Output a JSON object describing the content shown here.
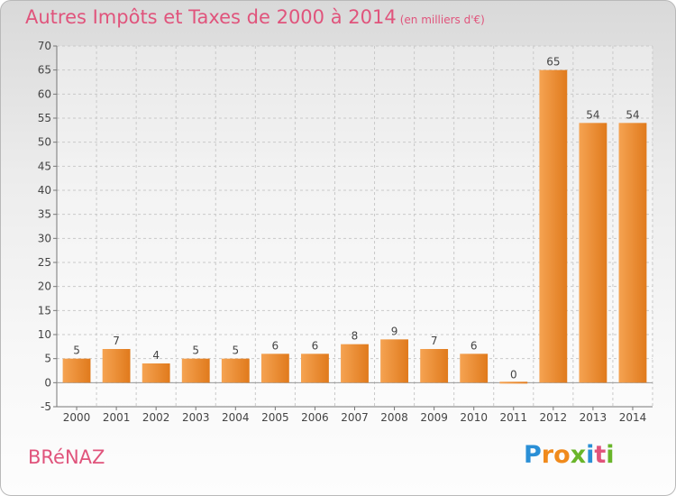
{
  "chart_data": {
    "type": "bar",
    "title": "Autres Impôts et Taxes de 2000 à 2014",
    "subtitle": "(en milliers d'€)",
    "categories": [
      "2000",
      "2001",
      "2002",
      "2003",
      "2004",
      "2005",
      "2006",
      "2007",
      "2008",
      "2009",
      "2010",
      "2011",
      "2012",
      "2013",
      "2014"
    ],
    "values": [
      5,
      7,
      4,
      5,
      5,
      6,
      6,
      8,
      9,
      7,
      6,
      0,
      65,
      54,
      54
    ],
    "ylim": [
      -5,
      70
    ],
    "yticks": [
      -5,
      0,
      5,
      10,
      15,
      20,
      25,
      30,
      35,
      40,
      45,
      50,
      55,
      60,
      65,
      70
    ],
    "grid": true,
    "bar_color": "#f0923a"
  },
  "commune": "BRéNAZ",
  "logo": {
    "letters": [
      "P",
      "r",
      "o",
      "x",
      "i",
      "t",
      "i"
    ],
    "colors": [
      "#2a8fd6",
      "#f08a1c",
      "#f08a1c",
      "#69b52a",
      "#2a8fd6",
      "#e0547c",
      "#69b52a"
    ]
  }
}
